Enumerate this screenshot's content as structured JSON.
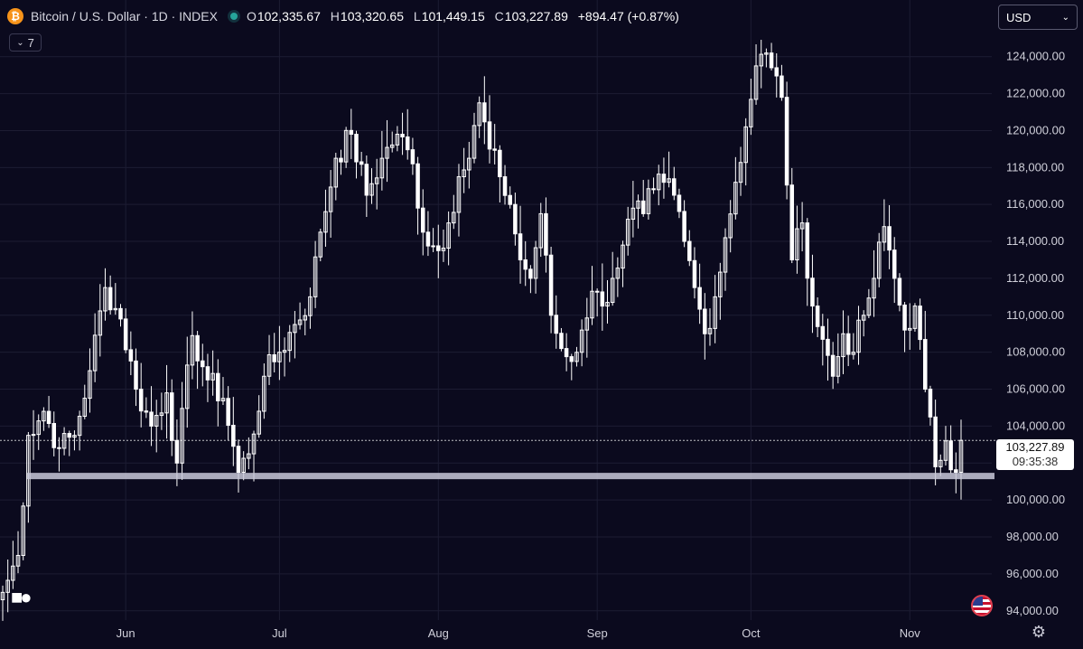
{
  "header": {
    "coin_icon_glyph": "₿",
    "symbol_title": "Bitcoin / U.S. Dollar · 1D · INDEX",
    "ohlc": {
      "o_label": "O",
      "o_value": "102,335.67",
      "h_label": "H",
      "h_value": "103,320.65",
      "l_label": "L",
      "l_value": "101,449.15",
      "c_label": "C",
      "c_value": "103,227.89",
      "change": "+894.47 (+0.87%)"
    },
    "indicator_toggle": {
      "icon": "chevron-down-icon",
      "count": "7"
    },
    "currency": {
      "value": "USD",
      "icon": "chevron-down-icon"
    }
  },
  "price_label": {
    "price": "103,227.89",
    "countdown": "09:35:38"
  },
  "colors": {
    "background": "#0b0a1e",
    "candle": "#ffffff",
    "grid": "#1d1c33",
    "support_line": "#c8c8d8",
    "status": "#26a69a"
  },
  "icons": {
    "logo": "tradingview-logo-icon",
    "flag": "us-flag-icon",
    "settings": "gear-icon"
  },
  "chart_data": {
    "type": "candlestick",
    "timeframe": "1D",
    "y_axis": {
      "range": [
        93500,
        125600
      ],
      "ticks": [
        "94,000.00",
        "96,000.00",
        "98,000.00",
        "100,000.00",
        "102,000.00",
        "104,000.00",
        "106,000.00",
        "108,000.00",
        "110,000.00",
        "112,000.00",
        "114,000.00",
        "116,000.00",
        "118,000.00",
        "120,000.00",
        "122,000.00",
        "124,000.00"
      ],
      "tick_values": [
        94000,
        96000,
        98000,
        100000,
        102000,
        104000,
        106000,
        108000,
        110000,
        112000,
        114000,
        116000,
        118000,
        120000,
        122000,
        124000
      ]
    },
    "x_axis": {
      "labels": [
        "Jun",
        "Jul",
        "Aug",
        "Sep",
        "Oct",
        "Nov"
      ],
      "label_day_index": [
        24,
        54,
        85,
        116,
        146,
        177
      ],
      "total_days": 190
    },
    "current_price": 103227.89,
    "support_level": 101300,
    "grid": true,
    "anchors": [
      [
        0,
        95000
      ],
      [
        3,
        97000
      ],
      [
        5,
        103500
      ],
      [
        8,
        104800
      ],
      [
        11,
        102800
      ],
      [
        14,
        103500
      ],
      [
        17,
        107000
      ],
      [
        20,
        111500
      ],
      [
        23,
        109800
      ],
      [
        26,
        106000
      ],
      [
        29,
        104000
      ],
      [
        32,
        105800
      ],
      [
        34,
        102000
      ],
      [
        37,
        108900
      ],
      [
        40,
        106500
      ],
      [
        43,
        105500
      ],
      [
        46,
        101500
      ],
      [
        48,
        102500
      ],
      [
        51,
        106700
      ],
      [
        54,
        108000
      ],
      [
        57,
        109500
      ],
      [
        60,
        111000
      ],
      [
        62,
        114500
      ],
      [
        65,
        118500
      ],
      [
        68,
        119800
      ],
      [
        71,
        116500
      ],
      [
        74,
        118500
      ],
      [
        77,
        119800
      ],
      [
        80,
        118200
      ],
      [
        82,
        114500
      ],
      [
        85,
        113500
      ],
      [
        87,
        115000
      ],
      [
        89,
        117500
      ],
      [
        91,
        118500
      ],
      [
        93,
        121500
      ],
      [
        95,
        119000
      ],
      [
        97,
        117500
      ],
      [
        99,
        116000
      ],
      [
        101,
        113000
      ],
      [
        103,
        112000
      ],
      [
        105,
        115500
      ],
      [
        107,
        110000
      ],
      [
        109,
        108200
      ],
      [
        111,
        107500
      ],
      [
        113,
        109200
      ],
      [
        115,
        111300
      ],
      [
        117,
        110500
      ],
      [
        119,
        112000
      ],
      [
        121,
        113800
      ],
      [
        123,
        115800
      ],
      [
        125,
        115500
      ],
      [
        127,
        116800
      ],
      [
        129,
        117200
      ],
      [
        131,
        116500
      ],
      [
        133,
        114000
      ],
      [
        135,
        111500
      ],
      [
        137,
        109000
      ],
      [
        139,
        111000
      ],
      [
        141,
        114200
      ],
      [
        143,
        117200
      ],
      [
        145,
        120200
      ],
      [
        147,
        123500
      ],
      [
        149,
        124200
      ],
      [
        150,
        123400
      ],
      [
        152,
        121800
      ],
      [
        154,
        113000
      ],
      [
        156,
        115000
      ],
      [
        158,
        110500
      ],
      [
        160,
        108700
      ],
      [
        162,
        106700
      ],
      [
        164,
        109000
      ],
      [
        166,
        108000
      ],
      [
        168,
        110000
      ],
      [
        170,
        112000
      ],
      [
        172,
        114800
      ],
      [
        174,
        112000
      ],
      [
        176,
        109200
      ],
      [
        178,
        110500
      ],
      [
        180,
        106000
      ],
      [
        182,
        101800
      ],
      [
        184,
        103200
      ],
      [
        186,
        101500
      ],
      [
        187,
        103227.89
      ]
    ]
  }
}
